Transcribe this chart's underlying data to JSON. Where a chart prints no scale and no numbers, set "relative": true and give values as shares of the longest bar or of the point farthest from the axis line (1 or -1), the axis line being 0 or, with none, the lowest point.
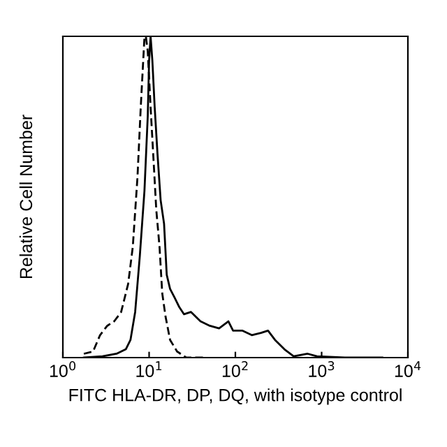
{
  "chart_data": {
    "type": "line",
    "relative": true,
    "xlabel": "FITC HLA-DR, DP, DQ, with isotype control",
    "ylabel": "Relative Cell Number",
    "log": "x",
    "xlim": [
      1,
      10000
    ],
    "xticks": [
      {
        "value": 1,
        "label": "10$^{0}$"
      },
      {
        "value": 10,
        "label": "10$^{1}$"
      },
      {
        "value": 100,
        "label": "10$^{2}$"
      },
      {
        "value": 1000,
        "label": "10$^{3}$"
      },
      {
        "value": 10000,
        "label": "10$^{4}$"
      }
    ],
    "tick_labels": "x",
    "marker": "none",
    "series": [
      {
        "color": "#000000",
        "line_style": "solid",
        "x": [
          1.75,
          2.88,
          4.19,
          5.37,
          6.08,
          6.89,
          7.8,
          8.83,
          9.64,
          10,
          10.4,
          10.9,
          11.6,
          12.5,
          13.6,
          14.9,
          16.0,
          17.5,
          19.8,
          22.4,
          25.4,
          30.6,
          39.4,
          50.5,
          64.7,
          83.0,
          94.0,
          120,
          155,
          198,
          239,
          288,
          370,
          474,
          689,
          883,
          1860,
          5050
        ],
        "values": [
          0,
          0.004,
          0.012,
          0.026,
          0.055,
          0.142,
          0.316,
          0.519,
          0.751,
          0.925,
          1.0,
          0.925,
          0.78,
          0.635,
          0.49,
          0.417,
          0.258,
          0.214,
          0.186,
          0.157,
          0.135,
          0.142,
          0.113,
          0.099,
          0.091,
          0.113,
          0.084,
          0.084,
          0.07,
          0.077,
          0.084,
          0.055,
          0.026,
          0.004,
          0.012,
          0.004,
          0,
          0
        ]
      },
      {
        "color": "#000000",
        "line_style": "dashed",
        "x": [
          1.75,
          2.24,
          2.7,
          3.27,
          3.94,
          4.74,
          5.71,
          6.47,
          7.33,
          8.0,
          8.83,
          9.16,
          9.64,
          10.4,
          11.3,
          12.1,
          13.2,
          14.2,
          15.5,
          17.5,
          21.1,
          27.0,
          44.6
        ],
        "values": [
          0.012,
          0.019,
          0.07,
          0.099,
          0.113,
          0.142,
          0.229,
          0.345,
          0.562,
          0.78,
          0.997,
          1.0,
          0.954,
          0.78,
          0.606,
          0.461,
          0.345,
          0.2,
          0.128,
          0.055,
          0.019,
          0,
          0
        ]
      }
    ]
  }
}
